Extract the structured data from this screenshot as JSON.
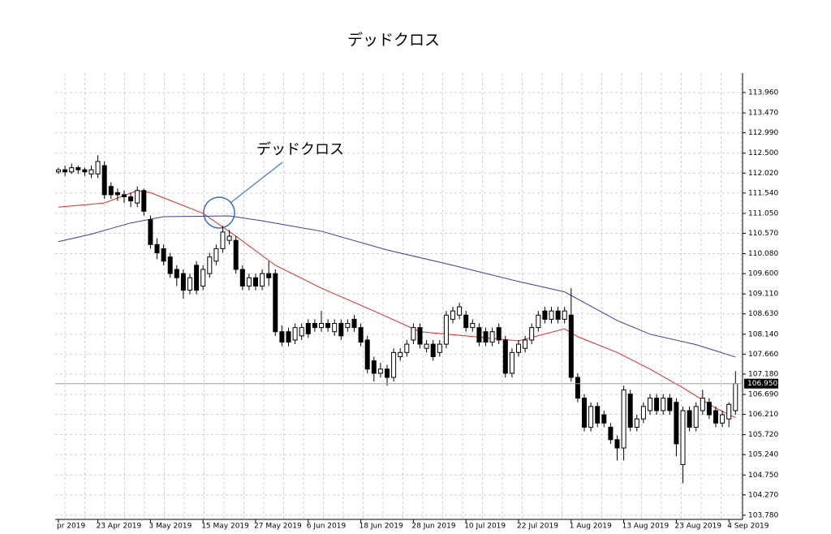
{
  "chart_data": {
    "type": "candlestick",
    "title": "デッドクロス",
    "annotation": "デッドクロス",
    "categories": [
      "pr 2019",
      null,
      null,
      null,
      null,
      null,
      "23 Apr 2019",
      null,
      null,
      null,
      null,
      null,
      null,
      null,
      "3 May 2019",
      null,
      null,
      null,
      null,
      null,
      null,
      null,
      "15 May 2019",
      null,
      null,
      null,
      null,
      null,
      null,
      null,
      "27 May 2019",
      null,
      null,
      null,
      null,
      null,
      null,
      null,
      "6 Jun 2019",
      null,
      null,
      null,
      null,
      null,
      null,
      null,
      "18 Jun 2019",
      null,
      null,
      null,
      null,
      null,
      null,
      null,
      "28 Jun 2019",
      null,
      null,
      null,
      null,
      null,
      null,
      null,
      "10 Jul 2019",
      null,
      null,
      null,
      null,
      null,
      null,
      null,
      "22 Jul 2019",
      null,
      null,
      null,
      null,
      null,
      null,
      null,
      "1 Aug 2019",
      null,
      null,
      null,
      null,
      null,
      null,
      null,
      "13 Aug 2019",
      null,
      null,
      null,
      null,
      null,
      null,
      null,
      "23 Aug 2019",
      null,
      null,
      null,
      null,
      null,
      null,
      null,
      "4 Sep 2019",
      null
    ],
    "open": [
      112.05,
      112.1,
      112.05,
      112.15,
      112.1,
      112.0,
      112.0,
      112.2,
      111.7,
      111.55,
      111.5,
      111.45,
      111.3,
      111.6,
      110.9,
      110.3,
      110.2,
      110.0,
      109.7,
      109.6,
      109.2,
      109.8,
      109.3,
      109.6,
      109.9,
      110.2,
      110.4,
      110.4,
      109.7,
      109.3,
      109.5,
      109.3,
      109.6,
      109.6,
      108.2,
      108.2,
      108.0,
      108.1,
      108.4,
      108.4,
      108.3,
      108.4,
      108.2,
      108.4,
      108.3,
      108.5,
      108.3,
      108.0,
      107.5,
      107.2,
      107.3,
      107.1,
      107.6,
      107.7,
      108.0,
      108.3,
      107.8,
      107.9,
      107.7,
      107.9,
      108.5,
      108.6,
      108.6,
      108.3,
      108.3,
      108.2,
      107.95,
      108.3,
      108.0,
      107.2,
      107.7,
      107.8,
      108.0,
      108.3,
      108.7,
      108.5,
      108.7,
      108.5,
      108.6,
      107.1,
      106.6,
      105.9,
      106.4,
      106.2,
      105.9,
      105.6,
      105.4,
      106.7,
      105.9,
      106.1,
      106.3,
      106.6,
      106.3,
      106.6,
      106.5,
      105.0,
      106.3,
      105.9,
      106.3,
      106.5,
      106.3,
      106.0,
      106.1,
      106.3
    ],
    "high": [
      112.15,
      112.2,
      112.25,
      112.2,
      112.15,
      112.2,
      112.45,
      112.3,
      111.8,
      111.65,
      111.6,
      111.55,
      111.7,
      111.65,
      111.0,
      110.45,
      110.3,
      110.1,
      109.8,
      109.7,
      109.6,
      109.9,
      109.8,
      110.1,
      110.3,
      110.75,
      110.65,
      110.5,
      109.8,
      109.6,
      109.6,
      109.7,
      109.9,
      109.7,
      108.35,
      108.3,
      108.4,
      108.4,
      108.5,
      108.5,
      108.7,
      108.5,
      108.5,
      108.5,
      108.5,
      108.6,
      108.4,
      108.1,
      107.6,
      107.45,
      107.4,
      107.8,
      107.8,
      108.0,
      108.4,
      108.4,
      108.0,
      108.0,
      108.0,
      108.7,
      108.8,
      108.9,
      108.7,
      108.5,
      108.4,
      108.3,
      108.3,
      108.4,
      108.1,
      107.8,
      108.0,
      108.1,
      108.4,
      108.7,
      108.8,
      108.8,
      108.8,
      108.8,
      109.25,
      107.2,
      106.7,
      106.5,
      106.5,
      106.3,
      106.0,
      105.7,
      106.9,
      106.8,
      106.2,
      106.5,
      106.7,
      106.7,
      106.7,
      106.7,
      106.6,
      106.4,
      106.4,
      106.5,
      106.8,
      106.6,
      106.4,
      106.3,
      106.5,
      107.25
    ],
    "low": [
      112.0,
      111.95,
      112.0,
      112.0,
      111.95,
      111.9,
      111.9,
      111.4,
      111.4,
      111.35,
      111.3,
      111.2,
      111.2,
      111.0,
      110.2,
      109.95,
      109.8,
      109.5,
      109.3,
      109.0,
      109.1,
      109.1,
      109.2,
      109.5,
      109.8,
      110.1,
      110.3,
      109.6,
      109.2,
      109.2,
      109.2,
      109.2,
      109.3,
      108.1,
      107.85,
      107.85,
      107.9,
      108.0,
      108.05,
      108.2,
      108.2,
      108.2,
      108.1,
      108.0,
      108.2,
      108.2,
      107.85,
      107.2,
      107.0,
      107.1,
      106.9,
      107.0,
      107.5,
      107.6,
      107.9,
      107.8,
      107.7,
      107.5,
      107.6,
      107.8,
      108.4,
      108.5,
      108.2,
      108.2,
      107.85,
      107.85,
      107.85,
      107.9,
      107.1,
      107.1,
      107.6,
      107.7,
      107.9,
      108.2,
      108.4,
      108.4,
      108.4,
      108.4,
      107.0,
      106.5,
      105.8,
      105.8,
      105.9,
      105.9,
      105.5,
      105.1,
      105.1,
      105.8,
      105.8,
      106.0,
      106.2,
      106.2,
      106.2,
      106.2,
      105.2,
      104.55,
      105.8,
      105.8,
      106.2,
      106.1,
      105.9,
      105.9,
      105.9,
      106.2
    ],
    "close": [
      112.1,
      112.05,
      112.15,
      112.1,
      112.05,
      112.1,
      112.3,
      111.5,
      111.5,
      111.5,
      111.45,
      111.35,
      111.6,
      111.1,
      110.3,
      110.1,
      109.9,
      109.6,
      109.5,
      109.2,
      109.5,
      109.2,
      109.7,
      110.0,
      110.2,
      110.6,
      110.5,
      109.7,
      109.3,
      109.5,
      109.3,
      109.6,
      109.5,
      108.2,
      107.95,
      107.95,
      108.3,
      108.3,
      108.15,
      108.3,
      108.4,
      108.3,
      108.4,
      108.1,
      108.4,
      108.3,
      107.95,
      107.3,
      107.2,
      107.3,
      107.1,
      107.7,
      107.7,
      107.9,
      108.3,
      107.9,
      107.9,
      107.6,
      107.9,
      108.6,
      108.7,
      108.8,
      108.3,
      108.4,
      107.95,
      107.95,
      108.2,
      108.0,
      107.2,
      107.7,
      107.9,
      108.0,
      108.3,
      108.6,
      108.5,
      108.7,
      108.5,
      108.7,
      107.1,
      106.6,
      105.9,
      106.4,
      106.0,
      106.0,
      105.6,
      105.4,
      106.8,
      105.9,
      106.1,
      106.4,
      106.6,
      106.3,
      106.6,
      106.3,
      105.5,
      106.3,
      105.9,
      106.4,
      106.6,
      106.2,
      106.0,
      106.2,
      106.45,
      106.95
    ],
    "lines": [
      {
        "color": "#e8282b",
        "x": [
          0,
          7,
          12,
          14,
          18,
          22,
          27,
          33,
          40,
          48,
          55,
          62,
          70,
          77,
          79,
          85,
          90,
          95,
          100,
          103
        ],
        "values": [
          111.2,
          111.3,
          111.6,
          111.55,
          111.3,
          111.05,
          110.5,
          109.8,
          109.25,
          108.7,
          108.2,
          108.1,
          107.98,
          108.27,
          108.08,
          107.7,
          107.3,
          106.85,
          106.36,
          106.13
        ]
      },
      {
        "color": "#3d3d9e",
        "x": [
          0,
          5,
          11,
          16,
          26,
          31,
          40,
          50,
          60,
          70,
          77,
          85,
          90,
          97,
          103
        ],
        "values": [
          110.37,
          110.55,
          110.82,
          110.97,
          110.99,
          110.87,
          110.62,
          110.17,
          109.8,
          109.41,
          109.16,
          108.47,
          108.14,
          107.89,
          107.59
        ]
      }
    ],
    "last_price": {
      "value": 106.95,
      "label": "106.950"
    },
    "ylim": [
      103.68,
      114.43
    ],
    "yticks": [
      {
        "value": 103.78,
        "label": "103.780"
      },
      {
        "value": 104.27,
        "label": "104.270"
      },
      {
        "value": 104.75,
        "label": "104.750"
      },
      {
        "value": 105.24,
        "label": "105.240"
      },
      {
        "value": 105.72,
        "label": "105.720"
      },
      {
        "value": 106.21,
        "label": "106.210"
      },
      {
        "value": 106.69,
        "label": "106.690"
      },
      {
        "value": 107.18,
        "label": "107.180"
      },
      {
        "value": 107.66,
        "label": "107.660"
      },
      {
        "value": 108.14,
        "label": "108.140"
      },
      {
        "value": 108.63,
        "label": "108.630"
      },
      {
        "value": 109.11,
        "label": "109.110"
      },
      {
        "value": 109.6,
        "label": "109.600"
      },
      {
        "value": 110.08,
        "label": "110.080"
      },
      {
        "value": 110.57,
        "label": "110.570"
      },
      {
        "value": 111.05,
        "label": "111.050"
      },
      {
        "value": 111.54,
        "label": "111.540"
      },
      {
        "value": 112.02,
        "label": "112.020"
      },
      {
        "value": 112.5,
        "label": "112.500"
      },
      {
        "value": 112.99,
        "label": "112.990"
      },
      {
        "value": 113.47,
        "label": "113.470"
      },
      {
        "value": 113.96,
        "label": "113.960"
      }
    ],
    "grid": true,
    "up_color": "#ffffff",
    "down_color": "#000000"
  }
}
